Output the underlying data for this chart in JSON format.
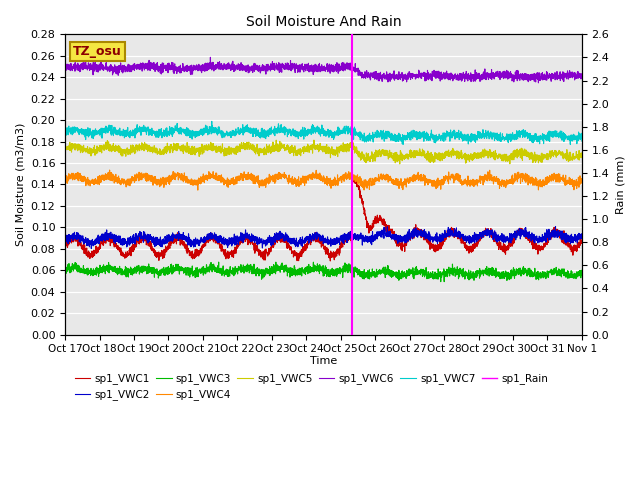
{
  "title": "Soil Moisture And Rain",
  "xlabel": "Time",
  "ylabel_left": "Soil Moisture (m3/m3)",
  "ylabel_right": "Rain (mm)",
  "annotation_label": "TZ_osu",
  "annotation_box_color": "#f5e642",
  "annotation_text_color": "#8b0000",
  "background_color": "#e8e8e8",
  "ylim_left": [
    0.0,
    0.28
  ],
  "ylim_right": [
    0.0,
    2.6
  ],
  "rain_day": 8.33,
  "days": 15,
  "n_points": 3000,
  "series": [
    {
      "key": "VWC1",
      "color": "#cc0000",
      "label": "sp1_VWC1",
      "pre_base": 0.082,
      "post_base": 0.088,
      "noise_amp": 0.008,
      "noise_period_days": 1.0,
      "spike_amp": 0.055,
      "spike_decay": 2.5,
      "has_spike": true
    },
    {
      "key": "VWC2",
      "color": "#0000cc",
      "label": "sp1_VWC2",
      "pre_base": 0.089,
      "post_base": 0.092,
      "noise_amp": 0.003,
      "noise_period_days": 1.0,
      "spike_amp": 0.0,
      "spike_decay": 0.0,
      "has_spike": false
    },
    {
      "key": "VWC3",
      "color": "#00bb00",
      "label": "sp1_VWC3",
      "pre_base": 0.06,
      "post_base": 0.057,
      "noise_amp": 0.002,
      "noise_period_days": 1.0,
      "spike_amp": 0.0,
      "spike_decay": 0.0,
      "has_spike": false
    },
    {
      "key": "VWC4",
      "color": "#ff8800",
      "label": "sp1_VWC4",
      "pre_base": 0.145,
      "post_base": 0.144,
      "noise_amp": 0.003,
      "noise_period_days": 1.0,
      "spike_amp": 0.0,
      "spike_decay": 0.0,
      "has_spike": false
    },
    {
      "key": "VWC5",
      "color": "#cccc00",
      "label": "sp1_VWC5",
      "pre_base": 0.173,
      "post_base": 0.167,
      "noise_amp": 0.002,
      "noise_period_days": 1.0,
      "spike_amp": 0.0,
      "spike_decay": 0.0,
      "has_spike": false
    },
    {
      "key": "VWC6",
      "color": "#8800cc",
      "label": "sp1_VWC6",
      "pre_base": 0.249,
      "post_base": 0.241,
      "noise_amp": 0.001,
      "noise_period_days": 2.0,
      "spike_amp": 0.0,
      "spike_decay": 0.0,
      "has_spike": false
    },
    {
      "key": "VWC7",
      "color": "#00cccc",
      "label": "sp1_VWC7",
      "pre_base": 0.189,
      "post_base": 0.185,
      "noise_amp": 0.002,
      "noise_period_days": 1.0,
      "spike_amp": 0.0,
      "spike_decay": 0.0,
      "has_spike": false
    }
  ],
  "x_tick_labels": [
    "Oct 17",
    "Oct 18",
    "Oct 19",
    "Oct 20",
    "Oct 21",
    "Oct 22",
    "Oct 23",
    "Oct 24",
    "Oct 25",
    "Oct 26",
    "Oct 27",
    "Oct 28",
    "Oct 29",
    "Oct 30",
    "Oct 31",
    "Nov 1"
  ],
  "legend_order": [
    "sp1_VWC1",
    "sp1_VWC2",
    "sp1_VWC3",
    "sp1_VWC4",
    "sp1_VWC5",
    "sp1_VWC6",
    "sp1_VWC7",
    "sp1_Rain"
  ]
}
